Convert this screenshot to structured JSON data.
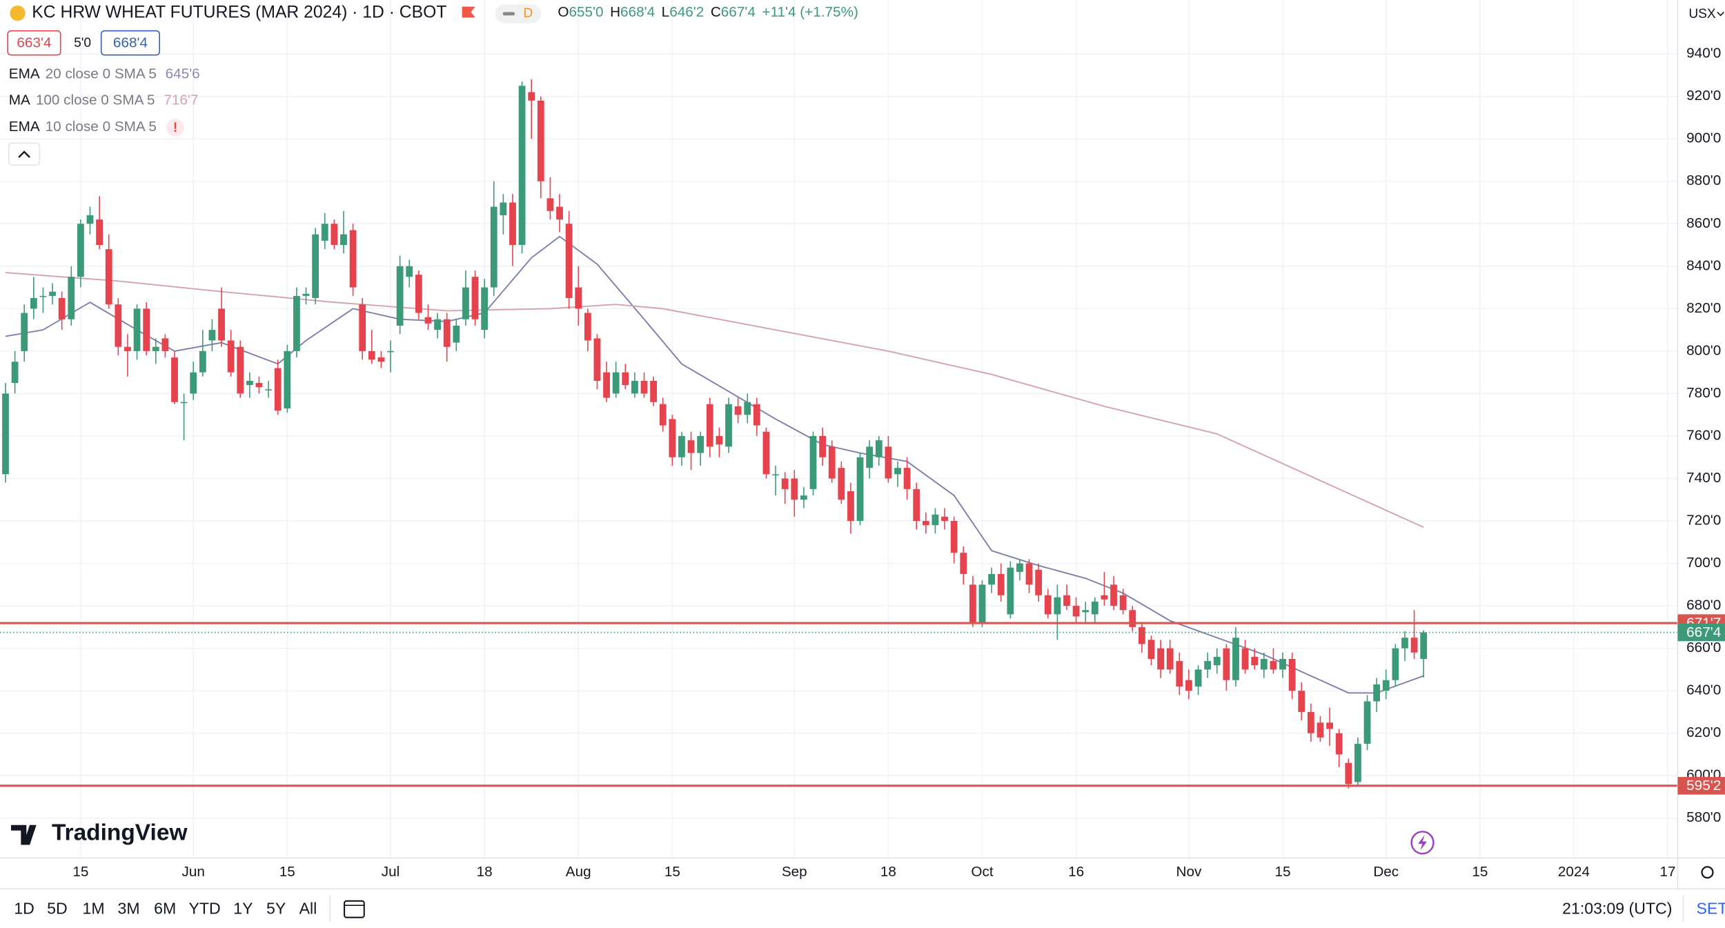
{
  "header": {
    "title": "KC HRW WHEAT FUTURES (MAR 2024) · 1D · CBOT",
    "delay": "D",
    "ohlc": [
      {
        "key": "O",
        "value": "655'0"
      },
      {
        "key": "H",
        "value": "668'4"
      },
      {
        "key": "L",
        "value": "646'2"
      },
      {
        "key": "C",
        "value": "667'4"
      }
    ],
    "change": "+11'4 (+1.75%)",
    "bid": "663'4",
    "spread": "5'0",
    "ask": "668'4"
  },
  "indicators": [
    {
      "name": "EMA",
      "params": "20 close 0 SMA 5",
      "value": "645'6",
      "color": "#8a8ab5"
    },
    {
      "name": "MA",
      "params": "100 close 0 SMA 5",
      "value": "716'7",
      "color": "#d4a3ab"
    },
    {
      "name": "EMA",
      "params": "10 close 0 SMA 5",
      "value": "!",
      "color": "#e5444e"
    }
  ],
  "currency": "USX",
  "logo": "TradingView",
  "toolbar": {
    "ranges": [
      "1D",
      "5D",
      "1M",
      "3M",
      "6M",
      "YTD",
      "1Y",
      "5Y",
      "All"
    ],
    "time": "21:03:09 (UTC)",
    "settings": "SET"
  },
  "chart_data": {
    "type": "candlestick",
    "up_color": "#3d9a78",
    "down_color": "#e5444e",
    "grid": true,
    "ylim": [
      561.2,
      965.4
    ],
    "yticks": [
      {
        "value": 580,
        "label": "580'0"
      },
      {
        "value": 600,
        "label": "600'0"
      },
      {
        "value": 620,
        "label": "620'0"
      },
      {
        "value": 640,
        "label": "640'0"
      },
      {
        "value": 660,
        "label": "660'0"
      },
      {
        "value": 680,
        "label": "680'0"
      },
      {
        "value": 700,
        "label": "700'0"
      },
      {
        "value": 720,
        "label": "720'0"
      },
      {
        "value": 740,
        "label": "740'0"
      },
      {
        "value": 760,
        "label": "760'0"
      },
      {
        "value": 780,
        "label": "780'0"
      },
      {
        "value": 800,
        "label": "800'0"
      },
      {
        "value": 820,
        "label": "820'0"
      },
      {
        "value": 840,
        "label": "840'0"
      },
      {
        "value": 860,
        "label": "860'0"
      },
      {
        "value": 880,
        "label": "880'0"
      },
      {
        "value": 900,
        "label": "900'0"
      },
      {
        "value": 920,
        "label": "920'0"
      },
      {
        "value": 940,
        "label": "940'0"
      }
    ],
    "categories": [
      null,
      null,
      null,
      null,
      null,
      null,
      null,
      null,
      "15",
      null,
      null,
      null,
      null,
      null,
      null,
      null,
      null,
      null,
      null,
      null,
      "Jun",
      null,
      null,
      null,
      null,
      null,
      null,
      null,
      null,
      null,
      "15",
      null,
      null,
      null,
      null,
      null,
      null,
      null,
      null,
      null,
      null,
      "Jul",
      null,
      null,
      null,
      null,
      null,
      null,
      null,
      null,
      null,
      "18",
      null,
      null,
      null,
      null,
      null,
      null,
      null,
      null,
      null,
      "Aug",
      null,
      null,
      null,
      null,
      null,
      null,
      null,
      null,
      null,
      "15",
      null,
      null,
      null,
      null,
      null,
      null,
      null,
      null,
      null,
      null,
      null,
      null,
      "Sep",
      null,
      null,
      null,
      null,
      null,
      null,
      null,
      null,
      null,
      "18",
      null,
      null,
      null,
      null,
      null,
      null,
      null,
      null,
      null,
      "Oct",
      null,
      null,
      null,
      null,
      null,
      null,
      null,
      null,
      null,
      "16",
      null,
      null,
      null,
      null,
      null,
      null,
      null,
      null,
      null,
      null,
      null,
      "Nov",
      null,
      null,
      null,
      null,
      null,
      null,
      null,
      null,
      null,
      "15",
      null,
      null,
      null,
      null,
      null,
      null,
      null,
      null,
      null,
      null,
      "Dec",
      null,
      null,
      null,
      null,
      null,
      null,
      null,
      null,
      null,
      "15",
      null,
      null,
      null,
      null,
      null,
      null,
      null,
      null,
      null,
      "2024",
      null,
      null,
      null,
      null,
      null,
      null,
      null,
      null,
      null,
      "17"
    ],
    "candles": [
      [
        742,
        785,
        738,
        780
      ],
      [
        785,
        800,
        780,
        795
      ],
      [
        800,
        822,
        795,
        818
      ],
      [
        820,
        835,
        815,
        825
      ],
      [
        826,
        830,
        818,
        826
      ],
      [
        826,
        832,
        822,
        828
      ],
      [
        825,
        828,
        810,
        815
      ],
      [
        815,
        840,
        812,
        835
      ],
      [
        835,
        862,
        830,
        860
      ],
      [
        860,
        868,
        855,
        864
      ],
      [
        862,
        873,
        848,
        850
      ],
      [
        848,
        855,
        820,
        822
      ],
      [
        822,
        825,
        798,
        802
      ],
      [
        802,
        808,
        788,
        800
      ],
      [
        800,
        822,
        796,
        820
      ],
      [
        820,
        823,
        798,
        800
      ],
      [
        800,
        806,
        794,
        802
      ],
      [
        806,
        808,
        797,
        800
      ],
      [
        797,
        800,
        775,
        776
      ],
      [
        776,
        780,
        758,
        776
      ],
      [
        780,
        795,
        777,
        790
      ],
      [
        790,
        810,
        788,
        800
      ],
      [
        805,
        815,
        800,
        810
      ],
      [
        820,
        830,
        802,
        805
      ],
      [
        805,
        810,
        788,
        790
      ],
      [
        802,
        805,
        778,
        780
      ],
      [
        784,
        790,
        778,
        786
      ],
      [
        785,
        788,
        780,
        783
      ],
      [
        782,
        786,
        778,
        782
      ],
      [
        792,
        796,
        770,
        772
      ],
      [
        773,
        803,
        771,
        800
      ],
      [
        800,
        830,
        797,
        826
      ],
      [
        826,
        830,
        822,
        827
      ],
      [
        825,
        858,
        822,
        855
      ],
      [
        852,
        865,
        848,
        860
      ],
      [
        860,
        862,
        848,
        850
      ],
      [
        850,
        866,
        846,
        855
      ],
      [
        857,
        860,
        826,
        830
      ],
      [
        822,
        825,
        796,
        800
      ],
      [
        800,
        810,
        794,
        796
      ],
      [
        797,
        800,
        792,
        795
      ],
      [
        800,
        805,
        790,
        800
      ],
      [
        812,
        845,
        808,
        840
      ],
      [
        835,
        843,
        830,
        840
      ],
      [
        836,
        838,
        815,
        818
      ],
      [
        816,
        822,
        810,
        813
      ],
      [
        810,
        818,
        806,
        815
      ],
      [
        815,
        818,
        795,
        802
      ],
      [
        804,
        815,
        800,
        812
      ],
      [
        815,
        838,
        812,
        830
      ],
      [
        835,
        838,
        812,
        815
      ],
      [
        810,
        834,
        806,
        830
      ],
      [
        830,
        880,
        826,
        868
      ],
      [
        864,
        874,
        855,
        870
      ],
      [
        870,
        874,
        840,
        850
      ],
      [
        850,
        927,
        846,
        925
      ],
      [
        922,
        928,
        900,
        918
      ],
      [
        918,
        920,
        872,
        880
      ],
      [
        872,
        882,
        862,
        866
      ],
      [
        868,
        874,
        856,
        862
      ],
      [
        860,
        866,
        820,
        825
      ],
      [
        830,
        840,
        812,
        820
      ],
      [
        818,
        820,
        800,
        805
      ],
      [
        806,
        808,
        782,
        786
      ],
      [
        790,
        795,
        776,
        778
      ],
      [
        780,
        795,
        778,
        790
      ],
      [
        790,
        794,
        782,
        784
      ],
      [
        780,
        790,
        778,
        786
      ],
      [
        786,
        790,
        778,
        780
      ],
      [
        786,
        788,
        774,
        776
      ],
      [
        775,
        778,
        762,
        765
      ],
      [
        768,
        770,
        746,
        750
      ],
      [
        750,
        762,
        746,
        760
      ],
      [
        758,
        762,
        744,
        752
      ],
      [
        752,
        762,
        746,
        760
      ],
      [
        775,
        778,
        750,
        755
      ],
      [
        760,
        764,
        750,
        756
      ],
      [
        755,
        778,
        752,
        775
      ],
      [
        774,
        778,
        766,
        770
      ],
      [
        770,
        780,
        766,
        776
      ],
      [
        775,
        778,
        760,
        765
      ],
      [
        762,
        764,
        740,
        742
      ],
      [
        742,
        746,
        732,
        742
      ],
      [
        740,
        743,
        728,
        735
      ],
      [
        740,
        744,
        722,
        730
      ],
      [
        730,
        736,
        726,
        732
      ],
      [
        735,
        762,
        732,
        760
      ],
      [
        760,
        764,
        746,
        750
      ],
      [
        755,
        758,
        738,
        740
      ],
      [
        745,
        748,
        728,
        730
      ],
      [
        734,
        738,
        714,
        720
      ],
      [
        720,
        752,
        718,
        750
      ],
      [
        745,
        758,
        740,
        755
      ],
      [
        750,
        760,
        746,
        758
      ],
      [
        755,
        760,
        738,
        740
      ],
      [
        742,
        748,
        736,
        745
      ],
      [
        745,
        750,
        730,
        735
      ],
      [
        735,
        738,
        716,
        720
      ],
      [
        720,
        724,
        714,
        718
      ],
      [
        718,
        726,
        714,
        723
      ],
      [
        722,
        726,
        716,
        720
      ],
      [
        720,
        722,
        700,
        705
      ],
      [
        705,
        708,
        690,
        695
      ],
      [
        690,
        694,
        670,
        672
      ],
      [
        672,
        692,
        670,
        690
      ],
      [
        690,
        698,
        686,
        695
      ],
      [
        695,
        700,
        682,
        685
      ],
      [
        676,
        701,
        674,
        698
      ],
      [
        696,
        702,
        692,
        700
      ],
      [
        700,
        702,
        686,
        690
      ],
      [
        697,
        700,
        682,
        685
      ],
      [
        685,
        688,
        674,
        676
      ],
      [
        676,
        690,
        664,
        684
      ],
      [
        685,
        690,
        678,
        680
      ],
      [
        680,
        684,
        672,
        675
      ],
      [
        677,
        682,
        672,
        678
      ],
      [
        676,
        684,
        672,
        682
      ],
      [
        685,
        696,
        680,
        683
      ],
      [
        690,
        694,
        678,
        680
      ],
      [
        685,
        688,
        676,
        678
      ],
      [
        678,
        680,
        668,
        670
      ],
      [
        670,
        672,
        658,
        662
      ],
      [
        664,
        666,
        652,
        655
      ],
      [
        660,
        664,
        646,
        650
      ],
      [
        660,
        664,
        648,
        650
      ],
      [
        654,
        658,
        638,
        642
      ],
      [
        645,
        650,
        636,
        640
      ],
      [
        642,
        652,
        638,
        650
      ],
      [
        650,
        658,
        646,
        654
      ],
      [
        652,
        660,
        648,
        656
      ],
      [
        660,
        662,
        640,
        645
      ],
      [
        645,
        670,
        642,
        665
      ],
      [
        660,
        664,
        648,
        650
      ],
      [
        656,
        660,
        650,
        652
      ],
      [
        650,
        658,
        646,
        655
      ],
      [
        654,
        660,
        648,
        650
      ],
      [
        650,
        658,
        646,
        655
      ],
      [
        655,
        658,
        636,
        640
      ],
      [
        640,
        644,
        626,
        630
      ],
      [
        630,
        634,
        616,
        620
      ],
      [
        625,
        628,
        616,
        618
      ],
      [
        625,
        632,
        614,
        622
      ],
      [
        620,
        622,
        604,
        610
      ],
      [
        606,
        608,
        594,
        596
      ],
      [
        597,
        618,
        595,
        615
      ],
      [
        615,
        638,
        612,
        635
      ],
      [
        635,
        646,
        630,
        643
      ],
      [
        640,
        650,
        636,
        645
      ],
      [
        645,
        662,
        642,
        660
      ],
      [
        660,
        668,
        654,
        665
      ],
      [
        665,
        678,
        655,
        658
      ],
      [
        655,
        668.5,
        646.25,
        667.5
      ],
      null,
      null,
      null,
      null,
      null,
      null,
      null,
      null,
      null,
      null,
      null,
      null,
      null,
      null,
      null,
      null,
      null,
      null,
      null,
      null,
      null,
      null,
      null,
      null,
      null,
      null
    ],
    "lines": [
      {
        "color": "#7e7eab",
        "x": [
          0,
          4,
          9,
          14,
          18,
          23,
          29,
          32,
          37,
          42,
          47,
          51,
          56,
          59,
          63,
          68,
          72,
          77,
          82,
          87,
          91,
          96,
          101,
          105,
          110,
          115,
          119,
          124,
          129,
          134,
          138,
          143,
          146,
          151
        ],
        "values": [
          807,
          810,
          823,
          810,
          800,
          804,
          794,
          805,
          820,
          815,
          814,
          818,
          844,
          854,
          841,
          815,
          794,
          781,
          768,
          756,
          752,
          748,
          732,
          706,
          699,
          693,
          686,
          673,
          665,
          657,
          649,
          639,
          639,
          647
        ]
      },
      {
        "color": "#d4a3ab",
        "x": [
          0,
          12,
          23,
          35,
          47,
          58,
          65,
          70,
          82,
          94,
          105,
          117,
          129,
          141,
          151
        ],
        "values": [
          837,
          833,
          828,
          823,
          819,
          820,
          822,
          820,
          810,
          800,
          789,
          774,
          761,
          737,
          717
        ]
      }
    ],
    "hlines": [
      {
        "value": 671.875,
        "label": "671'7",
        "color": "#d9534f",
        "style": "solid"
      },
      {
        "value": 667.5,
        "label": "667'4",
        "color": "#3d9a78",
        "style": "dotted"
      },
      {
        "value": 595.25,
        "label": "595'2",
        "color": "#d9534f",
        "style": "solid"
      }
    ]
  }
}
